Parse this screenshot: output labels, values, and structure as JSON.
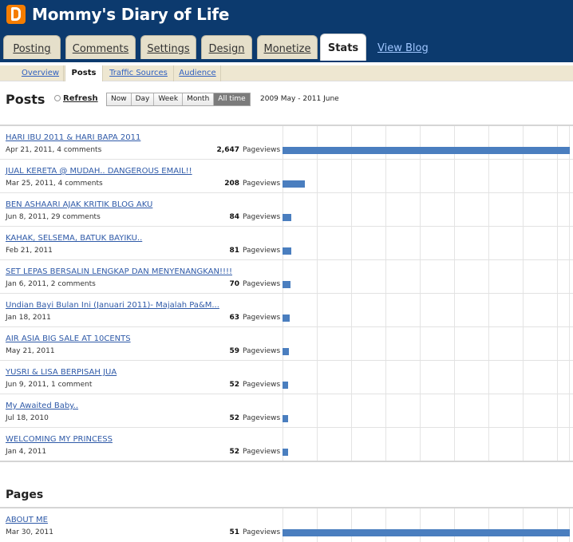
{
  "header": {
    "blog_title": "Mommy's Diary of Life",
    "tabs": [
      {
        "label": "Posting"
      },
      {
        "label": "Comments"
      },
      {
        "label": "Settings"
      },
      {
        "label": "Design"
      },
      {
        "label": "Monetize"
      },
      {
        "label": "Stats"
      }
    ],
    "view_blog": "View Blog"
  },
  "subnav": {
    "items": [
      {
        "label": "Overview"
      },
      {
        "label": "Posts"
      },
      {
        "label": "Traffic Sources"
      },
      {
        "label": "Audience"
      }
    ]
  },
  "toolbar": {
    "page_title": "Posts",
    "refresh_label": "Refresh",
    "ranges": [
      "Now",
      "Day",
      "Week",
      "Month",
      "All time"
    ],
    "selected_range": "All time",
    "date_range": "2009 May - 2011 June"
  },
  "posts": [
    {
      "title": "HARI IBU 2011 & HARI BAPA 2011",
      "meta": "Apr 21, 2011, 4 comments",
      "count": "2,647",
      "value": 2647,
      "unit": "Pageviews"
    },
    {
      "title": "JUAL KERETA @ MUDAH.. DANGEROUS EMAIL!!",
      "meta": "Mar 25, 2011, 4 comments",
      "count": "208",
      "value": 208,
      "unit": "Pageviews"
    },
    {
      "title": "BEN ASHAARI AJAK KRITIK BLOG AKU",
      "meta": "Jun 8, 2011, 29 comments",
      "count": "84",
      "value": 84,
      "unit": "Pageviews"
    },
    {
      "title": "KAHAK, SELSEMA, BATUK BAYIKU..",
      "meta": "Feb 21, 2011",
      "count": "81",
      "value": 81,
      "unit": "Pageviews"
    },
    {
      "title": "SET LEPAS BERSALIN LENGKAP DAN MENYENANGKAN!!!!",
      "meta": "Jan 6, 2011, 2 comments",
      "count": "70",
      "value": 70,
      "unit": "Pageviews"
    },
    {
      "title": "Undian Bayi Bulan Ini (Januari 2011)- Majalah Pa&M...",
      "meta": "Jan 18, 2011",
      "count": "63",
      "value": 63,
      "unit": "Pageviews"
    },
    {
      "title": "AIR ASIA BIG SALE AT 10CENTS",
      "meta": "May 21, 2011",
      "count": "59",
      "value": 59,
      "unit": "Pageviews"
    },
    {
      "title": "YUSRI & LISA BERPISAH JUA",
      "meta": "Jun 9, 2011, 1 comment",
      "count": "52",
      "value": 52,
      "unit": "Pageviews"
    },
    {
      "title": "My Awaited Baby..",
      "meta": "Jul 18, 2010",
      "count": "52",
      "value": 52,
      "unit": "Pageviews"
    },
    {
      "title": "WELCOMING MY PRINCESS",
      "meta": "Jan 4, 2011",
      "count": "52",
      "value": 52,
      "unit": "Pageviews"
    }
  ],
  "pages_section": {
    "title": "Pages",
    "items": [
      {
        "title": "ABOUT ME",
        "meta": "Mar 30, 2011",
        "count": "51",
        "value": 51,
        "unit": "Pageviews"
      }
    ]
  },
  "colors": {
    "header_bg": "#0c3a6e",
    "bar": "#4a7ebf",
    "link": "#2f5aa8",
    "tab_bg": "#e5dfca"
  }
}
